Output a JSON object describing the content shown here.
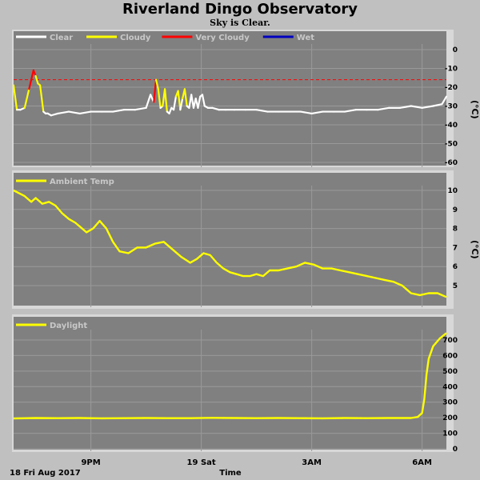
{
  "title": "Riverland Dingo Observatory",
  "subtitle": "Sky is Clear.",
  "x_axis": {
    "date_label": "18 Fri Aug 2017",
    "label": "Time",
    "ticks": [
      "9PM",
      "19 Sat",
      "3AM",
      "6AM"
    ]
  },
  "colors": {
    "panel_bg": "#808080",
    "page_bg": "#c0c0c0",
    "grid": "#a0a0a0",
    "clear": "#ffffff",
    "cloudy": "#ffff00",
    "very_cloudy": "#ff0000",
    "wet": "#0000c0",
    "threshold": "#ff0000"
  },
  "chart_data": [
    {
      "type": "line",
      "id": "sky",
      "unit": "(°C)",
      "legend": [
        {
          "name": "Clear",
          "color": "#ffffff"
        },
        {
          "name": "Cloudy",
          "color": "#ffff00"
        },
        {
          "name": "Very Cloudy",
          "color": "#ff0000"
        },
        {
          "name": "Wet",
          "color": "#0000c0"
        }
      ],
      "ylim": [
        -60,
        0
      ],
      "yticks": [
        "0",
        "-10",
        "-20",
        "-30",
        "-40",
        "-50",
        "-60"
      ],
      "threshold": -16,
      "x_hours": [
        0,
        0.15,
        0.3,
        0.5,
        0.7,
        0.9,
        1.0,
        1.1,
        1.2,
        1.35,
        1.45,
        1.55,
        1.7,
        2.0,
        2.5,
        3.0,
        3.5,
        4.0,
        4.5,
        5.0,
        5.5,
        6.0,
        6.2,
        6.35,
        6.45,
        6.55,
        6.65,
        6.75,
        6.85,
        6.95,
        7.05,
        7.15,
        7.25,
        7.35,
        7.45,
        7.55,
        7.65,
        7.75,
        7.85,
        7.95,
        8.05,
        8.15,
        8.25,
        8.35,
        8.45,
        8.55,
        8.65,
        8.8,
        9.0,
        9.3,
        9.6,
        10.0,
        10.5,
        11.0,
        11.5,
        12.0,
        12.5,
        13.0,
        13.5,
        14.0,
        14.5,
        15.0,
        15.5,
        16.0,
        16.5,
        17.0,
        17.5,
        18.0,
        18.5,
        19.0,
        19.4,
        19.6
      ],
      "values": [
        -19,
        -32,
        -32,
        -31,
        -21,
        -11,
        -14,
        -18,
        -19,
        -33,
        -34,
        -34,
        -35,
        -34,
        -33,
        -34,
        -33,
        -33,
        -33,
        -32,
        -32,
        -31,
        -24,
        -28,
        -16,
        -21,
        -31,
        -30,
        -21,
        -33,
        -34,
        -31,
        -32,
        -25,
        -22,
        -32,
        -26,
        -21,
        -30,
        -31,
        -24,
        -31,
        -26,
        -31,
        -25,
        -24,
        -30,
        -31,
        -31,
        -32,
        -32,
        -32,
        -32,
        -32,
        -33,
        -33,
        -33,
        -33,
        -34,
        -33,
        -33,
        -33,
        -32,
        -32,
        -32,
        -31,
        -31,
        -30,
        -31,
        -30,
        -29,
        -25
      ],
      "status": [
        "cloudy",
        "clear",
        "clear",
        "clear",
        "cloudy",
        "very_cloudy",
        "very_cloudy",
        "cloudy",
        "cloudy",
        "clear",
        "clear",
        "clear",
        "clear",
        "clear",
        "clear",
        "clear",
        "clear",
        "clear",
        "clear",
        "clear",
        "clear",
        "clear",
        "clear",
        "clear",
        "very_cloudy",
        "cloudy",
        "clear",
        "clear",
        "cloudy",
        "clear",
        "clear",
        "clear",
        "clear",
        "clear",
        "cloudy",
        "clear",
        "clear",
        "cloudy",
        "clear",
        "clear",
        "clear",
        "clear",
        "clear",
        "clear",
        "clear",
        "clear",
        "clear",
        "clear",
        "clear",
        "clear",
        "clear",
        "clear",
        "clear",
        "clear",
        "clear",
        "clear",
        "clear",
        "clear",
        "clear",
        "clear",
        "clear",
        "clear",
        "clear",
        "clear",
        "clear",
        "clear",
        "clear",
        "clear",
        "clear",
        "clear",
        "clear",
        "clear"
      ]
    },
    {
      "type": "line",
      "id": "ambient",
      "unit": "(°C)",
      "legend": [
        {
          "name": "Ambient Temp",
          "color": "#ffff00"
        }
      ],
      "ylim": [
        4,
        10.5
      ],
      "yticks": [
        "10",
        "9",
        "8",
        "7",
        "6",
        "5"
      ],
      "x_hours": [
        0,
        0.5,
        0.8,
        1.0,
        1.3,
        1.6,
        1.9,
        2.2,
        2.5,
        2.8,
        3.0,
        3.3,
        3.6,
        3.9,
        4.2,
        4.5,
        4.8,
        5.2,
        5.6,
        6.0,
        6.4,
        6.8,
        7.2,
        7.6,
        8.0,
        8.3,
        8.6,
        8.9,
        9.2,
        9.5,
        9.8,
        10.1,
        10.4,
        10.7,
        11.0,
        11.3,
        11.6,
        12.0,
        12.4,
        12.8,
        13.2,
        13.6,
        14.0,
        14.4,
        14.8,
        15.2,
        15.6,
        16.0,
        16.4,
        16.8,
        17.2,
        17.6,
        18.0,
        18.4,
        18.8,
        19.2,
        19.6
      ],
      "values": [
        10.0,
        9.7,
        9.4,
        9.6,
        9.3,
        9.4,
        9.2,
        8.8,
        8.5,
        8.3,
        8.1,
        7.8,
        8.0,
        8.4,
        8.0,
        7.3,
        6.8,
        6.7,
        7.0,
        7.0,
        7.2,
        7.3,
        6.9,
        6.5,
        6.2,
        6.4,
        6.7,
        6.6,
        6.2,
        5.9,
        5.7,
        5.6,
        5.5,
        5.5,
        5.6,
        5.5,
        5.8,
        5.8,
        5.9,
        6.0,
        6.2,
        6.1,
        5.9,
        5.9,
        5.8,
        5.7,
        5.6,
        5.5,
        5.4,
        5.3,
        5.2,
        5.0,
        4.6,
        4.5,
        4.6,
        4.6,
        4.4
      ]
    },
    {
      "type": "line",
      "id": "daylight",
      "legend": [
        {
          "name": "Daylight",
          "color": "#ffff00"
        }
      ],
      "ylim": [
        0,
        750
      ],
      "yticks": [
        "700",
        "600",
        "500",
        "400",
        "300",
        "200",
        "100",
        "0"
      ],
      "x_hours": [
        0,
        1,
        2,
        3,
        4,
        5,
        6,
        7,
        8,
        9,
        10,
        11,
        12,
        13,
        14,
        15,
        16,
        17,
        18,
        18.3,
        18.5,
        18.6,
        18.7,
        18.8,
        19.0,
        19.3,
        19.6
      ],
      "values": [
        195,
        198,
        197,
        198,
        196,
        197,
        198,
        197,
        197,
        199,
        198,
        197,
        198,
        197,
        196,
        198,
        197,
        198,
        198,
        205,
        230,
        320,
        480,
        580,
        660,
        710,
        745
      ]
    }
  ]
}
